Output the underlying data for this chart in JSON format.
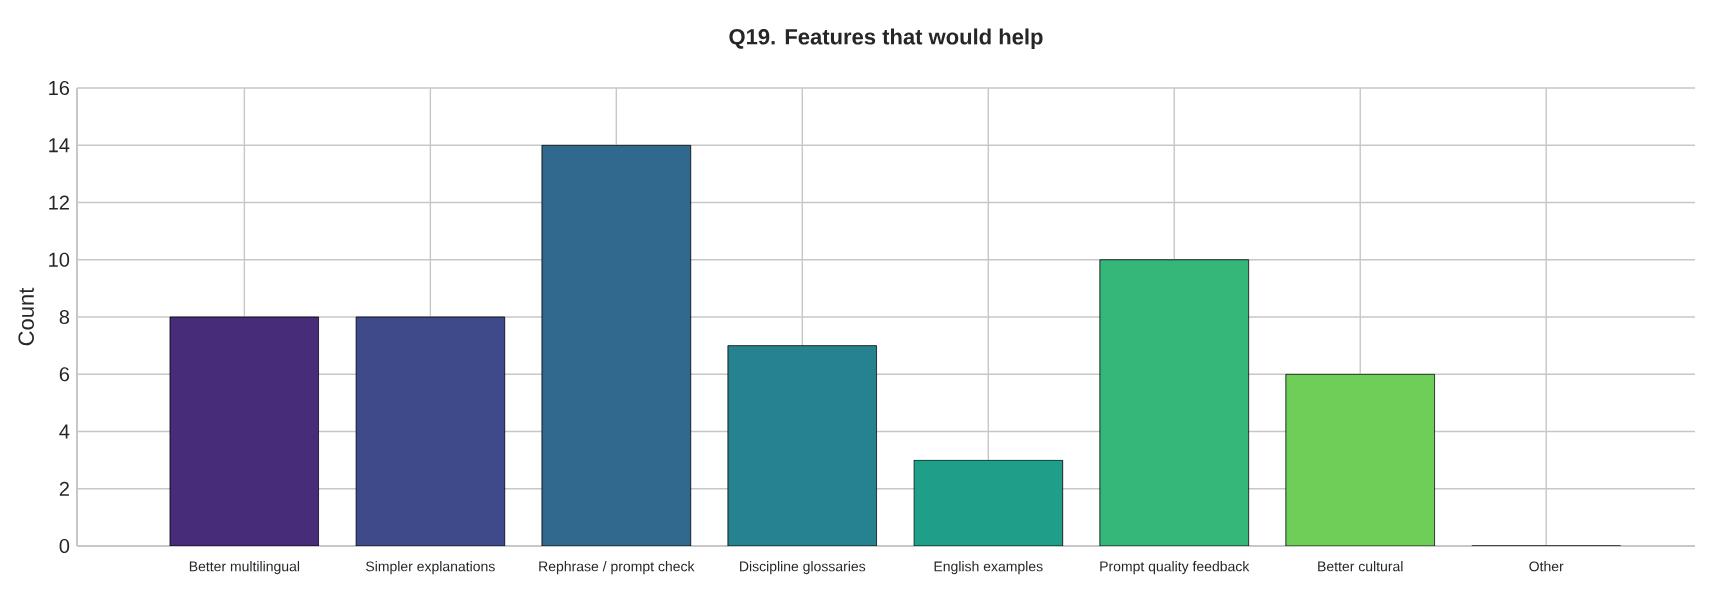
{
  "chart_data": {
    "type": "bar",
    "title": "Q19. Features that would help",
    "ylabel": "Count",
    "categories": [
      "Better multilingual",
      "Simpler explanations",
      "Rephrase / prompt check",
      "Discipline glossaries",
      "English examples",
      "Prompt quality feedback",
      "Better cultural",
      "Other"
    ],
    "values": [
      8,
      8,
      14,
      7,
      3,
      10,
      6,
      0
    ],
    "colors": [
      "#472c7a",
      "#3e4a89",
      "#31688e",
      "#26828e",
      "#1f9e89",
      "#35b779",
      "#6ece58",
      "#b5de2b"
    ],
    "ylim": [
      0,
      16
    ],
    "yticks": [
      0,
      2,
      4,
      6,
      8,
      10,
      12,
      14,
      16
    ],
    "grid": true
  }
}
